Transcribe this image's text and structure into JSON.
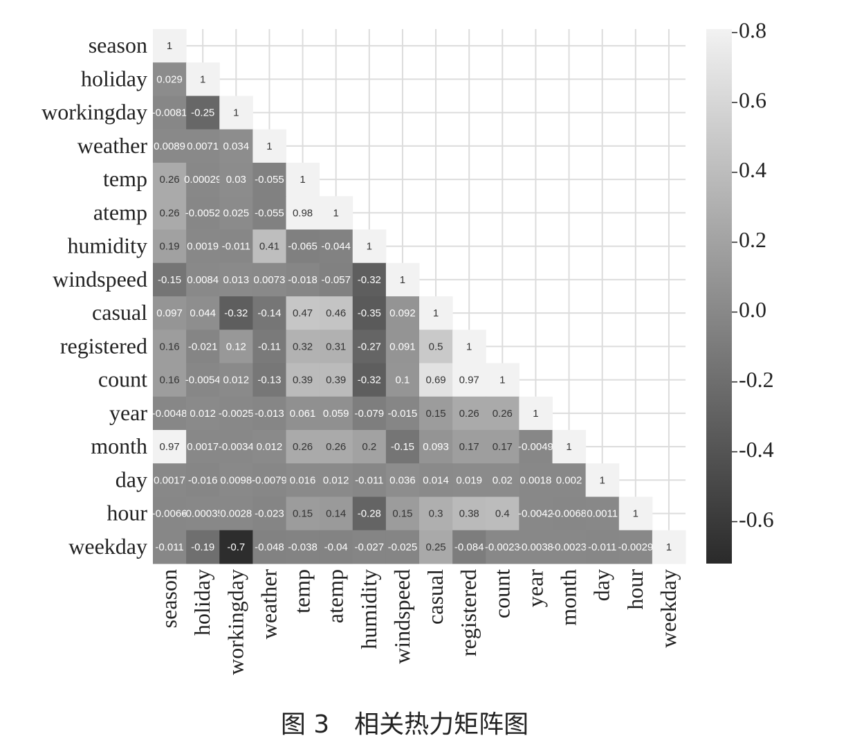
{
  "chart_data": {
    "type": "heatmap",
    "caption": "图 3　相关热力矩阵图",
    "labels": [
      "season",
      "holiday",
      "workingday",
      "weather",
      "temp",
      "atemp",
      "humidity",
      "windspeed",
      "casual",
      "registered",
      "count",
      "year",
      "month",
      "day",
      "hour",
      "weekday"
    ],
    "matrix": [
      [
        1
      ],
      [
        0.029,
        1
      ],
      [
        -0.0081,
        -0.25,
        1
      ],
      [
        0.0089,
        0.0071,
        0.034,
        1
      ],
      [
        0.26,
        0.00029,
        0.03,
        -0.055,
        1
      ],
      [
        0.26,
        -0.0052,
        0.025,
        -0.055,
        0.98,
        1
      ],
      [
        0.19,
        0.0019,
        -0.011,
        0.41,
        -0.065,
        -0.044,
        1
      ],
      [
        -0.15,
        0.0084,
        0.013,
        0.0073,
        -0.018,
        -0.057,
        -0.32,
        1
      ],
      [
        0.097,
        0.044,
        -0.32,
        -0.14,
        0.47,
        0.46,
        -0.35,
        0.092,
        1
      ],
      [
        0.16,
        -0.021,
        0.12,
        -0.11,
        0.32,
        0.31,
        -0.27,
        0.091,
        0.5,
        1
      ],
      [
        0.16,
        -0.0054,
        0.012,
        -0.13,
        0.39,
        0.39,
        -0.32,
        0.1,
        0.69,
        0.97,
        1
      ],
      [
        -0.0048,
        0.012,
        -0.0025,
        -0.013,
        0.061,
        0.059,
        -0.079,
        -0.015,
        0.15,
        0.26,
        0.26,
        1
      ],
      [
        0.97,
        0.0017,
        -0.0034,
        0.012,
        0.26,
        0.26,
        0.2,
        -0.15,
        0.093,
        0.17,
        0.17,
        -0.0049,
        1
      ],
      [
        0.0017,
        -0.016,
        0.0098,
        -0.0079,
        0.016,
        0.012,
        -0.011,
        0.036,
        0.014,
        0.019,
        0.02,
        0.0018,
        0.002,
        1
      ],
      [
        -0.0066,
        -0.00035,
        0.0028,
        -0.023,
        0.15,
        0.14,
        -0.28,
        0.15,
        0.3,
        0.38,
        0.4,
        -0.0042,
        -0.0068,
        0.0011,
        1
      ],
      [
        -0.011,
        -0.19,
        -0.7,
        -0.048,
        -0.038,
        -0.04,
        -0.027,
        -0.025,
        0.25,
        -0.084,
        -0.0023,
        -0.0038,
        -0.0023,
        -0.011,
        -0.0029,
        1
      ]
    ],
    "clim": [
      -0.72,
      0.81
    ],
    "cticks": [
      0.8,
      0.6,
      0.4,
      0.2,
      {
        "value": 0,
        "label": "0.0"
      },
      -0.2,
      -0.4,
      -0.6
    ],
    "grid": true
  }
}
